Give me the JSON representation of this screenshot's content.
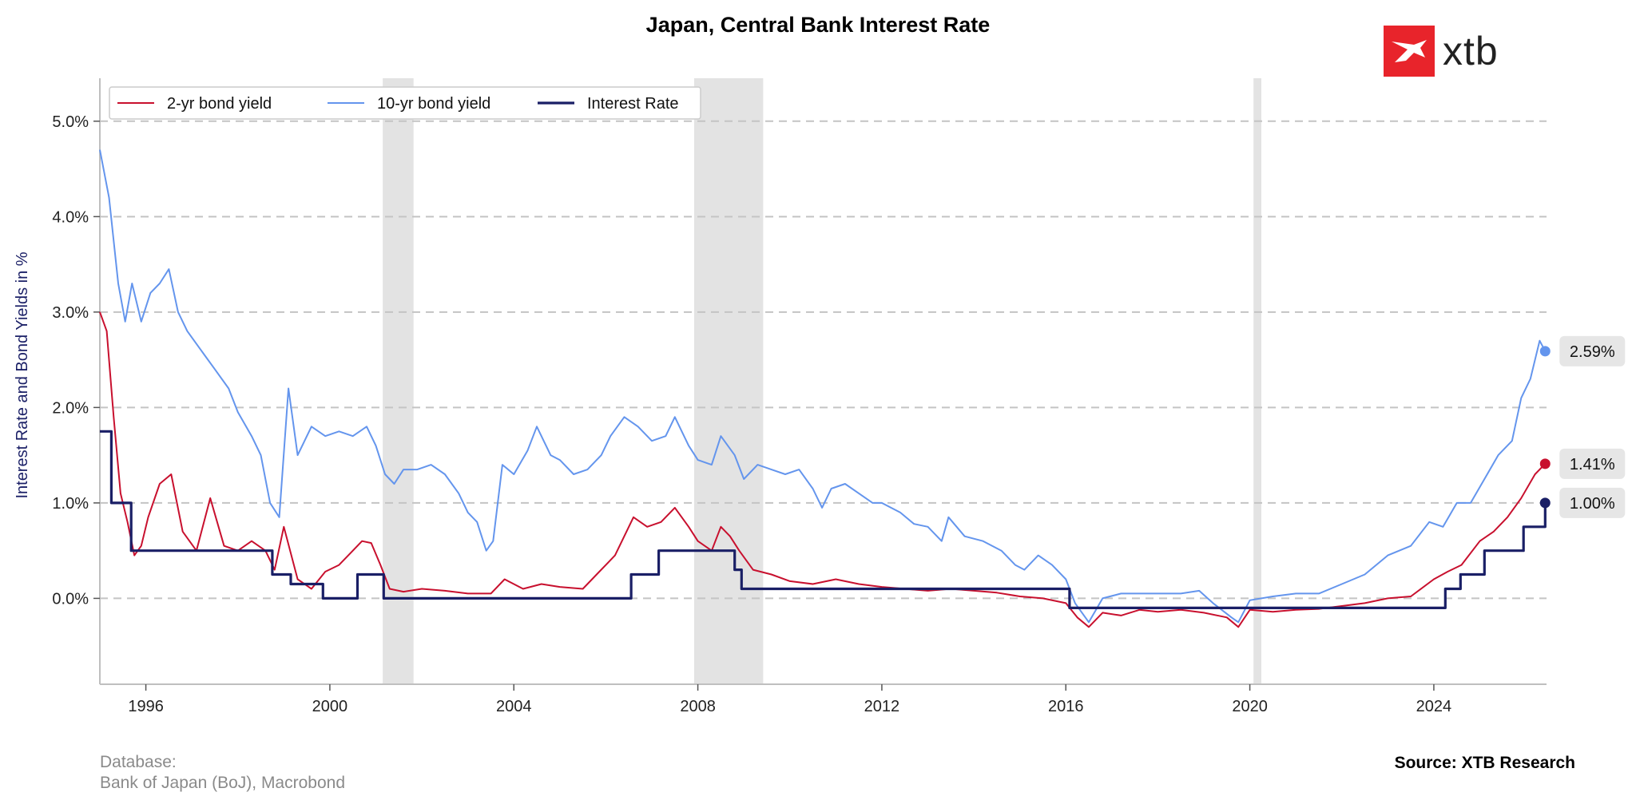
{
  "header": {
    "title": "Japan, Central Bank Interest Rate"
  },
  "logo": {
    "text": "xtb",
    "color": "#e8242b"
  },
  "footer": {
    "database_label": "Database:",
    "database_value": "Bank of Japan (BoJ), Macrobond",
    "source": "Source: XTB Research"
  },
  "chart_data": {
    "type": "line",
    "title": "Japan, Central Bank Interest Rate",
    "xlabel": "",
    "ylabel": "Interest Rate and Bond Yields in %",
    "xlim": [
      1995.0,
      2026.45
    ],
    "ylim": [
      -0.9,
      5.45
    ],
    "x_ticks": [
      1996,
      2000,
      2004,
      2008,
      2012,
      2016,
      2020,
      2024
    ],
    "y_ticks": [
      0,
      1,
      2,
      3,
      4,
      5
    ],
    "y_tick_labels": [
      "0.0%",
      "1.0%",
      "2.0%",
      "3.0%",
      "4.0%",
      "5.0%"
    ],
    "grid": "horizontal-dashed",
    "legend_position": "top-left",
    "shaded_periods": [
      [
        2001.15,
        2001.82
      ],
      [
        2007.92,
        2009.42
      ],
      [
        2020.08,
        2020.25
      ]
    ],
    "series": [
      {
        "name": "2-yr bond yield",
        "color": "#c8102e",
        "style": "line",
        "end_label": "1.41%",
        "points": [
          [
            1995.0,
            3.0
          ],
          [
            1995.15,
            2.8
          ],
          [
            1995.3,
            1.9
          ],
          [
            1995.45,
            1.1
          ],
          [
            1995.6,
            0.8
          ],
          [
            1995.75,
            0.45
          ],
          [
            1995.9,
            0.55
          ],
          [
            1996.05,
            0.85
          ],
          [
            1996.3,
            1.2
          ],
          [
            1996.55,
            1.3
          ],
          [
            1996.8,
            0.7
          ],
          [
            1997.1,
            0.5
          ],
          [
            1997.4,
            1.05
          ],
          [
            1997.7,
            0.55
          ],
          [
            1998.0,
            0.5
          ],
          [
            1998.3,
            0.6
          ],
          [
            1998.6,
            0.5
          ],
          [
            1998.8,
            0.3
          ],
          [
            1999.0,
            0.75
          ],
          [
            1999.3,
            0.2
          ],
          [
            1999.6,
            0.1
          ],
          [
            1999.9,
            0.28
          ],
          [
            2000.2,
            0.35
          ],
          [
            2000.5,
            0.5
          ],
          [
            2000.7,
            0.6
          ],
          [
            2000.9,
            0.58
          ],
          [
            2001.1,
            0.35
          ],
          [
            2001.3,
            0.1
          ],
          [
            2001.6,
            0.07
          ],
          [
            2002.0,
            0.1
          ],
          [
            2002.5,
            0.08
          ],
          [
            2003.0,
            0.05
          ],
          [
            2003.5,
            0.05
          ],
          [
            2003.8,
            0.2
          ],
          [
            2004.2,
            0.1
          ],
          [
            2004.6,
            0.15
          ],
          [
            2005.0,
            0.12
          ],
          [
            2005.5,
            0.1
          ],
          [
            2005.8,
            0.25
          ],
          [
            2006.2,
            0.45
          ],
          [
            2006.6,
            0.85
          ],
          [
            2006.9,
            0.75
          ],
          [
            2007.2,
            0.8
          ],
          [
            2007.5,
            0.95
          ],
          [
            2007.8,
            0.75
          ],
          [
            2008.0,
            0.6
          ],
          [
            2008.3,
            0.5
          ],
          [
            2008.5,
            0.75
          ],
          [
            2008.7,
            0.65
          ],
          [
            2008.9,
            0.5
          ],
          [
            2009.2,
            0.3
          ],
          [
            2009.6,
            0.25
          ],
          [
            2010.0,
            0.18
          ],
          [
            2010.5,
            0.15
          ],
          [
            2011.0,
            0.2
          ],
          [
            2011.5,
            0.15
          ],
          [
            2012.0,
            0.12
          ],
          [
            2012.5,
            0.1
          ],
          [
            2013.0,
            0.08
          ],
          [
            2013.5,
            0.1
          ],
          [
            2014.0,
            0.08
          ],
          [
            2014.5,
            0.06
          ],
          [
            2015.0,
            0.02
          ],
          [
            2015.5,
            0.0
          ],
          [
            2016.0,
            -0.05
          ],
          [
            2016.25,
            -0.2
          ],
          [
            2016.5,
            -0.3
          ],
          [
            2016.8,
            -0.15
          ],
          [
            2017.2,
            -0.18
          ],
          [
            2017.6,
            -0.12
          ],
          [
            2018.0,
            -0.14
          ],
          [
            2018.5,
            -0.12
          ],
          [
            2019.0,
            -0.15
          ],
          [
            2019.5,
            -0.2
          ],
          [
            2019.75,
            -0.3
          ],
          [
            2020.0,
            -0.12
          ],
          [
            2020.5,
            -0.14
          ],
          [
            2021.0,
            -0.12
          ],
          [
            2021.5,
            -0.11
          ],
          [
            2022.0,
            -0.08
          ],
          [
            2022.5,
            -0.05
          ],
          [
            2023.0,
            0.0
          ],
          [
            2023.5,
            0.02
          ],
          [
            2024.0,
            0.2
          ],
          [
            2024.3,
            0.28
          ],
          [
            2024.6,
            0.35
          ],
          [
            2025.0,
            0.6
          ],
          [
            2025.3,
            0.7
          ],
          [
            2025.6,
            0.85
          ],
          [
            2025.9,
            1.05
          ],
          [
            2026.2,
            1.3
          ],
          [
            2026.42,
            1.41
          ]
        ]
      },
      {
        "name": "10-yr bond yield",
        "color": "#6495ed",
        "style": "line",
        "end_label": "2.59%",
        "points": [
          [
            1995.0,
            4.7
          ],
          [
            1995.2,
            4.2
          ],
          [
            1995.4,
            3.3
          ],
          [
            1995.55,
            2.9
          ],
          [
            1995.7,
            3.3
          ],
          [
            1995.9,
            2.9
          ],
          [
            1996.1,
            3.2
          ],
          [
            1996.3,
            3.3
          ],
          [
            1996.5,
            3.45
          ],
          [
            1996.7,
            3.0
          ],
          [
            1996.9,
            2.8
          ],
          [
            1997.2,
            2.6
          ],
          [
            1997.5,
            2.4
          ],
          [
            1997.8,
            2.2
          ],
          [
            1998.0,
            1.95
          ],
          [
            1998.3,
            1.7
          ],
          [
            1998.5,
            1.5
          ],
          [
            1998.7,
            1.0
          ],
          [
            1998.9,
            0.85
          ],
          [
            1999.1,
            2.2
          ],
          [
            1999.3,
            1.5
          ],
          [
            1999.6,
            1.8
          ],
          [
            1999.9,
            1.7
          ],
          [
            2000.2,
            1.75
          ],
          [
            2000.5,
            1.7
          ],
          [
            2000.8,
            1.8
          ],
          [
            2001.0,
            1.6
          ],
          [
            2001.2,
            1.3
          ],
          [
            2001.4,
            1.2
          ],
          [
            2001.6,
            1.35
          ],
          [
            2001.9,
            1.35
          ],
          [
            2002.2,
            1.4
          ],
          [
            2002.5,
            1.3
          ],
          [
            2002.8,
            1.1
          ],
          [
            2003.0,
            0.9
          ],
          [
            2003.2,
            0.8
          ],
          [
            2003.4,
            0.5
          ],
          [
            2003.55,
            0.6
          ],
          [
            2003.75,
            1.4
          ],
          [
            2004.0,
            1.3
          ],
          [
            2004.3,
            1.55
          ],
          [
            2004.5,
            1.8
          ],
          [
            2004.8,
            1.5
          ],
          [
            2005.0,
            1.45
          ],
          [
            2005.3,
            1.3
          ],
          [
            2005.6,
            1.35
          ],
          [
            2005.9,
            1.5
          ],
          [
            2006.1,
            1.7
          ],
          [
            2006.4,
            1.9
          ],
          [
            2006.7,
            1.8
          ],
          [
            2007.0,
            1.65
          ],
          [
            2007.3,
            1.7
          ],
          [
            2007.5,
            1.9
          ],
          [
            2007.8,
            1.6
          ],
          [
            2008.0,
            1.45
          ],
          [
            2008.3,
            1.4
          ],
          [
            2008.5,
            1.7
          ],
          [
            2008.8,
            1.5
          ],
          [
            2009.0,
            1.25
          ],
          [
            2009.3,
            1.4
          ],
          [
            2009.6,
            1.35
          ],
          [
            2009.9,
            1.3
          ],
          [
            2010.2,
            1.35
          ],
          [
            2010.5,
            1.15
          ],
          [
            2010.7,
            0.95
          ],
          [
            2010.9,
            1.15
          ],
          [
            2011.2,
            1.2
          ],
          [
            2011.5,
            1.1
          ],
          [
            2011.8,
            1.0
          ],
          [
            2012.0,
            1.0
          ],
          [
            2012.4,
            0.9
          ],
          [
            2012.7,
            0.78
          ],
          [
            2013.0,
            0.75
          ],
          [
            2013.3,
            0.6
          ],
          [
            2013.45,
            0.85
          ],
          [
            2013.8,
            0.65
          ],
          [
            2014.2,
            0.6
          ],
          [
            2014.6,
            0.5
          ],
          [
            2014.9,
            0.35
          ],
          [
            2015.1,
            0.3
          ],
          [
            2015.4,
            0.45
          ],
          [
            2015.7,
            0.35
          ],
          [
            2016.0,
            0.2
          ],
          [
            2016.2,
            -0.05
          ],
          [
            2016.5,
            -0.25
          ],
          [
            2016.8,
            0.0
          ],
          [
            2017.2,
            0.05
          ],
          [
            2017.6,
            0.05
          ],
          [
            2018.0,
            0.05
          ],
          [
            2018.5,
            0.05
          ],
          [
            2018.9,
            0.08
          ],
          [
            2019.2,
            -0.05
          ],
          [
            2019.6,
            -0.2
          ],
          [
            2019.75,
            -0.25
          ],
          [
            2020.0,
            -0.02
          ],
          [
            2020.5,
            0.02
          ],
          [
            2021.0,
            0.05
          ],
          [
            2021.5,
            0.05
          ],
          [
            2022.0,
            0.15
          ],
          [
            2022.5,
            0.25
          ],
          [
            2023.0,
            0.45
          ],
          [
            2023.5,
            0.55
          ],
          [
            2023.9,
            0.8
          ],
          [
            2024.2,
            0.75
          ],
          [
            2024.5,
            1.0
          ],
          [
            2024.8,
            1.0
          ],
          [
            2025.1,
            1.25
          ],
          [
            2025.4,
            1.5
          ],
          [
            2025.7,
            1.65
          ],
          [
            2025.9,
            2.1
          ],
          [
            2026.1,
            2.3
          ],
          [
            2026.3,
            2.7
          ],
          [
            2026.42,
            2.59
          ]
        ]
      },
      {
        "name": "Interest Rate",
        "color": "#1a1f66",
        "style": "step",
        "end_label": "1.00%",
        "points": [
          [
            1995.0,
            1.75
          ],
          [
            1995.25,
            1.0
          ],
          [
            1995.68,
            0.5
          ],
          [
            1998.75,
            0.25
          ],
          [
            1999.15,
            0.15
          ],
          [
            1999.85,
            0.0
          ],
          [
            2000.6,
            0.25
          ],
          [
            2001.17,
            0.0
          ],
          [
            2006.55,
            0.25
          ],
          [
            2007.15,
            0.5
          ],
          [
            2008.8,
            0.3
          ],
          [
            2008.95,
            0.1
          ],
          [
            2016.08,
            -0.1
          ],
          [
            2024.25,
            0.1
          ],
          [
            2024.58,
            0.25
          ],
          [
            2025.1,
            0.5
          ],
          [
            2025.95,
            0.75
          ],
          [
            2026.42,
            1.0
          ]
        ]
      }
    ]
  }
}
